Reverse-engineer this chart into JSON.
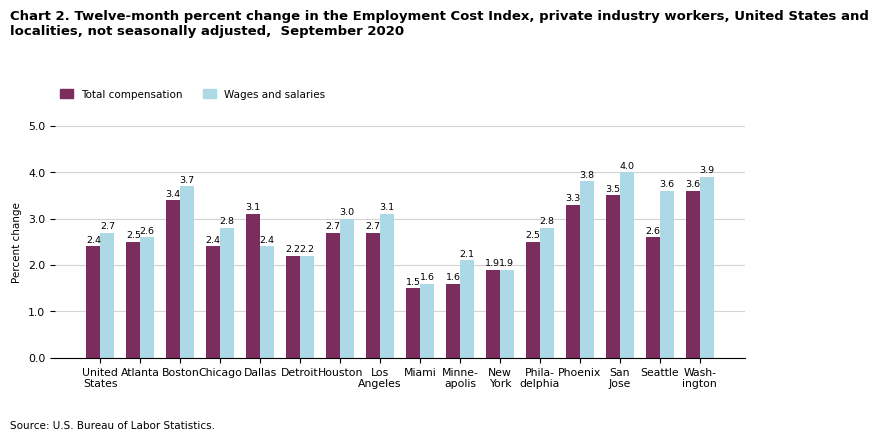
{
  "title_line1": "Chart 2. Twelve-month percent change in the Employment Cost Index, private industry workers, United States and",
  "title_line2": "localities, not seasonally adjusted,  September 2020",
  "ylabel": "Percent change",
  "source": "Source: U.S. Bureau of Labor Statistics.",
  "categories": [
    "United\nStates",
    "Atlanta",
    "Boston",
    "Chicago",
    "Dallas",
    "Detroit",
    "Houston",
    "Los\nAngeles",
    "Miami",
    "Minne-\napolis",
    "New\nYork",
    "Phila-\ndelphia",
    "Phoenix",
    "San\nJose",
    "Seattle",
    "Wash-\nington"
  ],
  "total_compensation": [
    2.4,
    2.5,
    3.4,
    2.4,
    3.1,
    2.2,
    2.7,
    2.7,
    1.5,
    1.6,
    1.9,
    2.5,
    3.3,
    3.5,
    2.6,
    3.6
  ],
  "wages_and_salaries": [
    2.7,
    2.6,
    3.7,
    2.8,
    2.4,
    2.2,
    3.0,
    3.1,
    1.6,
    2.1,
    1.9,
    2.8,
    3.8,
    4.0,
    3.6,
    3.9
  ],
  "color_total": "#7B2D5E",
  "color_wages": "#ADD8E6",
  "ylim": [
    0,
    5.0
  ],
  "yticks": [
    0.0,
    1.0,
    2.0,
    3.0,
    4.0,
    5.0
  ],
  "legend_total": "Total compensation",
  "legend_wages": "Wages and salaries",
  "bar_width": 0.35,
  "title_fontsize": 9.5,
  "label_fontsize": 7.5,
  "tick_fontsize": 7.8,
  "annotation_fontsize": 6.8
}
